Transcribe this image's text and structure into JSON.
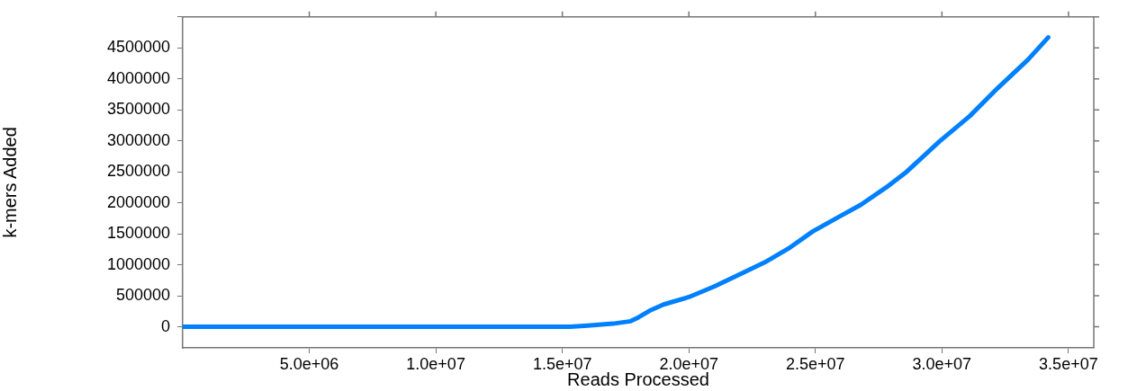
{
  "chart_data": {
    "type": "line",
    "xlabel": "Reads Processed",
    "ylabel": "k-mers Added",
    "x": [
      0,
      2000000,
      5000000,
      8000000,
      10000000,
      13000000,
      15300000,
      16000000,
      17000000,
      17700000,
      18000000,
      18500000,
      19000000,
      20000000,
      21000000,
      22100000,
      23000000,
      24000000,
      24900000,
      26000000,
      26800000,
      27800000,
      28600000,
      29900000,
      31100000,
      32200000,
      33400000,
      34200000
    ],
    "series": [
      {
        "color": "#0080ff",
        "values": [
          0,
          0,
          0,
          0,
          0,
          0,
          0,
          20000,
          50000,
          90000,
          150000,
          270000,
          360000,
          480000,
          650000,
          865000,
          1040000,
          1280000,
          1540000,
          1790000,
          1970000,
          2250000,
          2500000,
          2990000,
          3400000,
          3850000,
          4310000,
          4670000
        ]
      }
    ],
    "xlim": [
      0,
      36000000
    ],
    "ylim": [
      -340000,
      5000000
    ],
    "xticks": [
      {
        "value": 5000000,
        "label": "5.0e+06"
      },
      {
        "value": 10000000,
        "label": "1.0e+07"
      },
      {
        "value": 15000000,
        "label": "1.5e+07"
      },
      {
        "value": 20000000,
        "label": "2.0e+07"
      },
      {
        "value": 25000000,
        "label": "2.5e+07"
      },
      {
        "value": 30000000,
        "label": "3.0e+07"
      },
      {
        "value": 35000000,
        "label": "3.5e+07"
      }
    ],
    "yticks": [
      0,
      500000,
      1000000,
      1500000,
      2000000,
      2500000,
      3000000,
      3500000,
      4000000,
      4500000,
      {
        "value": 5000000,
        "label": null
      }
    ],
    "grid": false,
    "legend": false,
    "marker": "none",
    "line_style": "solid"
  }
}
